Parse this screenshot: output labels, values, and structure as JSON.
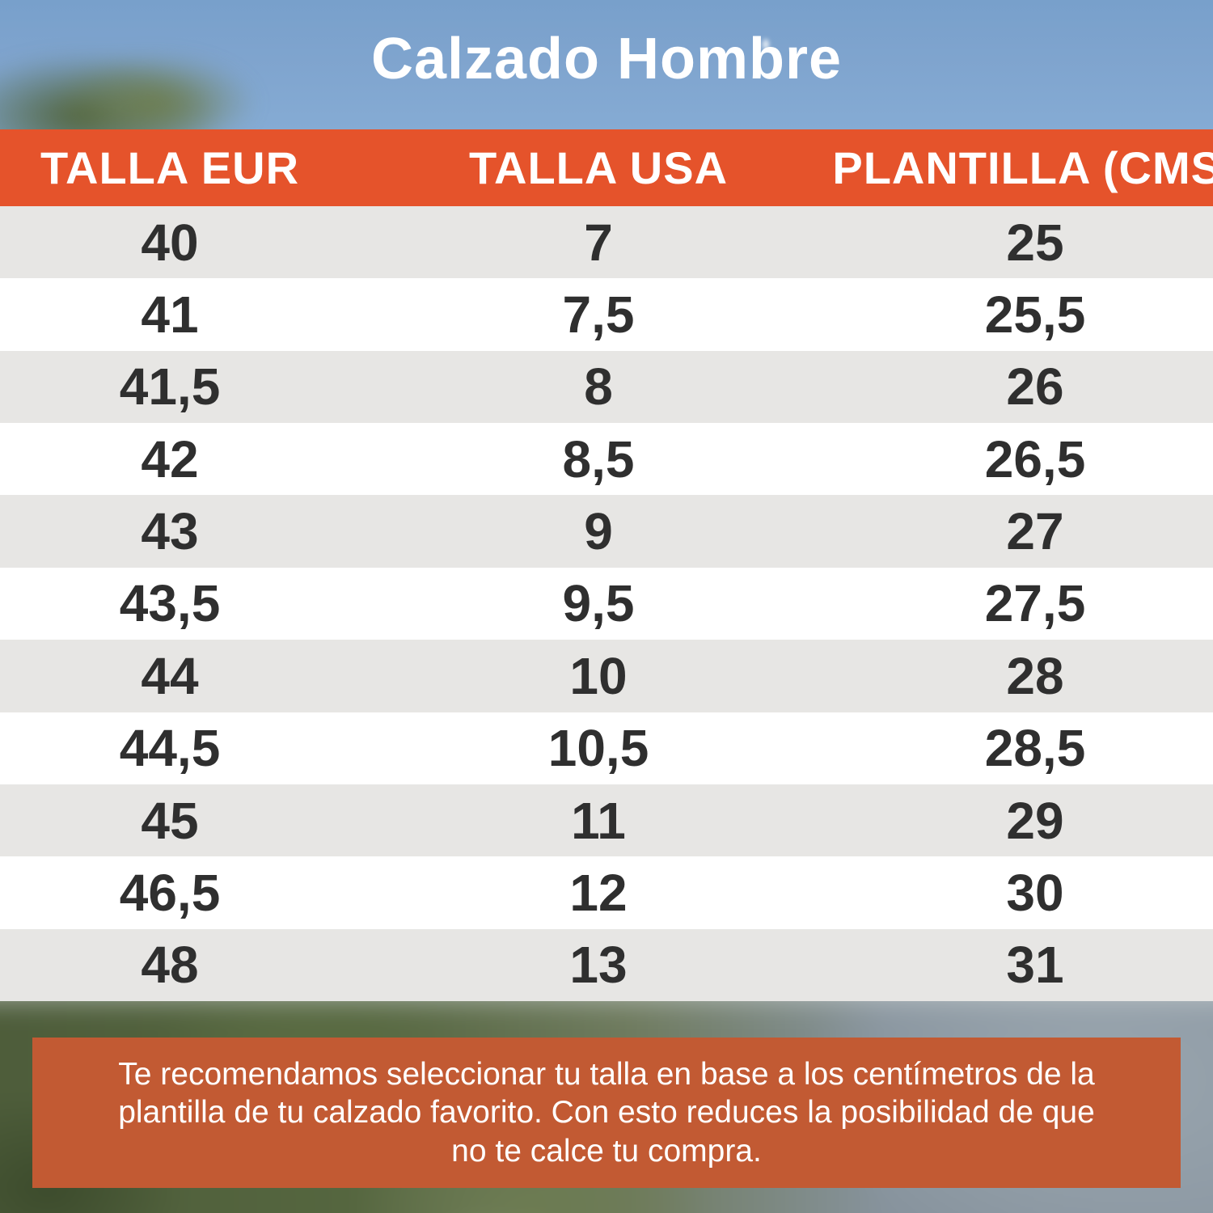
{
  "chart_data": {
    "type": "table",
    "title": "Calzado Hombre",
    "columns": [
      "TALLA EUR",
      "TALLA USA",
      "PLANTILLA (CMS)"
    ],
    "rows": [
      [
        "40",
        "7",
        "25"
      ],
      [
        "41",
        "7,5",
        "25,5"
      ],
      [
        "41,5",
        "8",
        "26"
      ],
      [
        "42",
        "8,5",
        "26,5"
      ],
      [
        "43",
        "9",
        "27"
      ],
      [
        "43,5",
        "9,5",
        "27,5"
      ],
      [
        "44",
        "10",
        "28"
      ],
      [
        "44,5",
        "10,5",
        "28,5"
      ],
      [
        "45",
        "11",
        "29"
      ],
      [
        "46,5",
        "12",
        "30"
      ],
      [
        "48",
        "13",
        "31"
      ]
    ],
    "note": "Te recomendamos seleccionar tu talla en base a los centímetros de la plantilla de tu calzado favorito. Con esto reduces la posibilidad de que no te calce tu compra."
  },
  "colors": {
    "header_bg": "#E5532B",
    "note_bg": "#C25A33",
    "row_alt": "#E7E6E4",
    "row_white": "#FFFFFF",
    "cell_text": "#2F2F2F",
    "header_text": "#FFFFFF",
    "title_text": "#FFFFFF",
    "sky": "#7FA4CE"
  }
}
